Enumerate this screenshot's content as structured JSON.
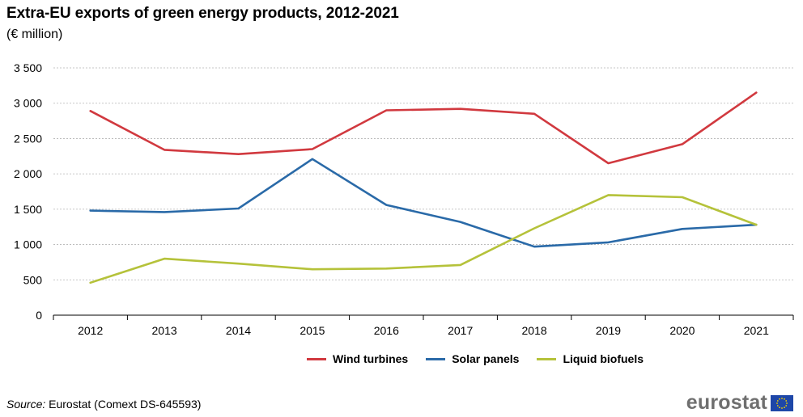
{
  "header": {
    "title": "Extra-EU exports of green energy products, 2012-2021",
    "subtitle": "(€ million)"
  },
  "footer": {
    "source_label": "Source:",
    "source_text": " Eurostat (Comext DS-645593)",
    "logo_text": "eurostat"
  },
  "colors": {
    "wind": "#d1393f",
    "solar": "#2a6aa8",
    "biofuels": "#b5c23a",
    "grid": "#b4b4b4",
    "logo_flag": "#1e47a8",
    "logo_stars": "#f5d200"
  },
  "chart_data": {
    "type": "line",
    "title": "Extra-EU exports of green energy products, 2012-2021",
    "subtitle": "(€ million)",
    "x": [
      "2012",
      "2013",
      "2014",
      "2015",
      "2016",
      "2017",
      "2018",
      "2019",
      "2020",
      "2021"
    ],
    "ylim": [
      0,
      3500
    ],
    "yticks": [
      0,
      500,
      1000,
      1500,
      2000,
      2500,
      3000,
      3500
    ],
    "ytick_labels": [
      "0",
      "500",
      "1 000",
      "1 500",
      "2 000",
      "2 500",
      "3 000",
      "3 500"
    ],
    "grid": true,
    "legend_position": "bottom",
    "series": [
      {
        "name": "Wind turbines",
        "color": "#d1393f",
        "values": [
          2890,
          2340,
          2280,
          2350,
          2900,
          2920,
          2850,
          2150,
          2420,
          3150
        ]
      },
      {
        "name": "Solar panels",
        "color": "#2a6aa8",
        "values": [
          1480,
          1460,
          1510,
          2210,
          1560,
          1320,
          970,
          1030,
          1220,
          1280
        ]
      },
      {
        "name": "Liquid biofuels",
        "color": "#b5c23a",
        "values": [
          460,
          800,
          730,
          650,
          660,
          710,
          1230,
          1700,
          1670,
          1280
        ]
      }
    ]
  }
}
